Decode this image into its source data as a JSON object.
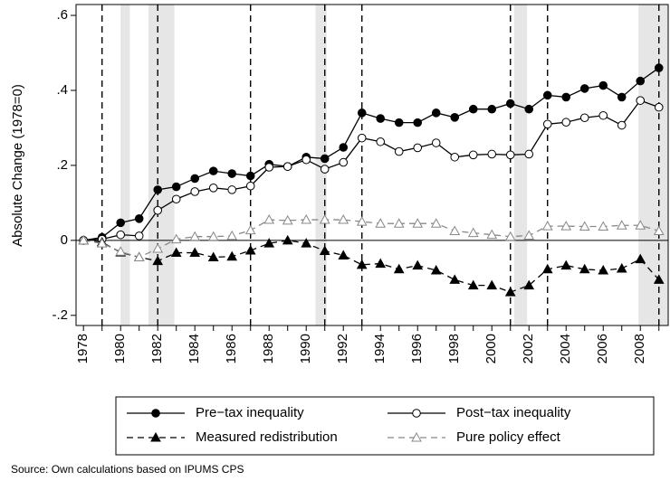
{
  "chart_data": {
    "type": "line",
    "ylabel": "Absolute Change (1978=0)",
    "source": "Source: Own calculations based on IPUMS CPS",
    "x": [
      1978,
      1979,
      1980,
      1981,
      1982,
      1983,
      1984,
      1985,
      1986,
      1987,
      1988,
      1989,
      1990,
      1991,
      1992,
      1993,
      1994,
      1995,
      1996,
      1997,
      1998,
      1999,
      2000,
      2001,
      2002,
      2003,
      2004,
      2005,
      2006,
      2007,
      2008,
      2009
    ],
    "series": [
      {
        "name": "Pre−tax inequality",
        "color": "#000000",
        "dash": false,
        "marker": "circle",
        "filled": true,
        "values": [
          0,
          0.008,
          0.047,
          0.058,
          0.135,
          0.143,
          0.165,
          0.185,
          0.178,
          0.172,
          0.203,
          0.197,
          0.222,
          0.218,
          0.248,
          0.34,
          0.325,
          0.314,
          0.314,
          0.34,
          0.328,
          0.35,
          0.35,
          0.365,
          0.35,
          0.387,
          0.382,
          0.405,
          0.413,
          0.382,
          0.425,
          0.46
        ]
      },
      {
        "name": "Post−tax inequality",
        "color": "#000000",
        "dash": false,
        "marker": "circle",
        "filled": false,
        "values": [
          0,
          0.003,
          0.015,
          0.012,
          0.08,
          0.11,
          0.13,
          0.14,
          0.135,
          0.145,
          0.195,
          0.197,
          0.215,
          0.19,
          0.208,
          0.273,
          0.263,
          0.237,
          0.247,
          0.26,
          0.222,
          0.228,
          0.23,
          0.228,
          0.23,
          0.31,
          0.315,
          0.327,
          0.333,
          0.307,
          0.373,
          0.355
        ]
      },
      {
        "name": "Measured redistribution",
        "color": "#000000",
        "dash": true,
        "marker": "triangle",
        "filled": true,
        "values": [
          0,
          -0.005,
          -0.032,
          -0.045,
          -0.055,
          -0.033,
          -0.033,
          -0.045,
          -0.043,
          -0.027,
          -0.008,
          0,
          -0.008,
          -0.028,
          -0.04,
          -0.065,
          -0.062,
          -0.077,
          -0.067,
          -0.08,
          -0.105,
          -0.12,
          -0.12,
          -0.138,
          -0.12,
          -0.077,
          -0.067,
          -0.077,
          -0.08,
          -0.075,
          -0.05,
          -0.105
        ]
      },
      {
        "name": "Pure policy effect",
        "color": "#888888",
        "dash": true,
        "marker": "triangle",
        "filled": false,
        "values": [
          0,
          -0.008,
          -0.03,
          -0.045,
          -0.022,
          0.003,
          0.01,
          0.01,
          0.012,
          0.027,
          0.055,
          0.053,
          0.055,
          0.055,
          0.055,
          0.05,
          0.045,
          0.045,
          0.045,
          0.045,
          0.025,
          0.02,
          0.015,
          0.01,
          0.013,
          0.038,
          0.038,
          0.037,
          0.037,
          0.04,
          0.04,
          0.025
        ]
      }
    ],
    "xlim": [
      1977.6,
      2009.5
    ],
    "xticks": [
      1978,
      1980,
      1982,
      1984,
      1986,
      1988,
      1990,
      1992,
      1994,
      1996,
      1998,
      2000,
      2002,
      2004,
      2006,
      2008
    ],
    "xminorticks": [
      1979,
      1981,
      1983,
      1985,
      1987,
      1989,
      1991,
      1993,
      1995,
      1997,
      1999,
      2001,
      2003,
      2005,
      2007,
      2009
    ],
    "ylim": [
      -0.227,
      0.629
    ],
    "yticks": [
      {
        "value": -0.2,
        "label": "-.2"
      },
      0,
      {
        "value": 0.2,
        "label": ".2"
      },
      {
        "value": 0.4,
        "label": ".4"
      },
      {
        "value": 0.6,
        "label": ".6"
      }
    ],
    "shaded_periods": [
      [
        1980,
        1980.5
      ],
      [
        1981.5,
        1982.9
      ],
      [
        1990.5,
        1991.1
      ],
      [
        2001.2,
        2001.9
      ],
      [
        2007.9,
        2009.5
      ]
    ],
    "vlines": [
      1979,
      1982,
      1987,
      1991,
      1993,
      2001,
      2003,
      2009
    ],
    "hline": 0
  }
}
